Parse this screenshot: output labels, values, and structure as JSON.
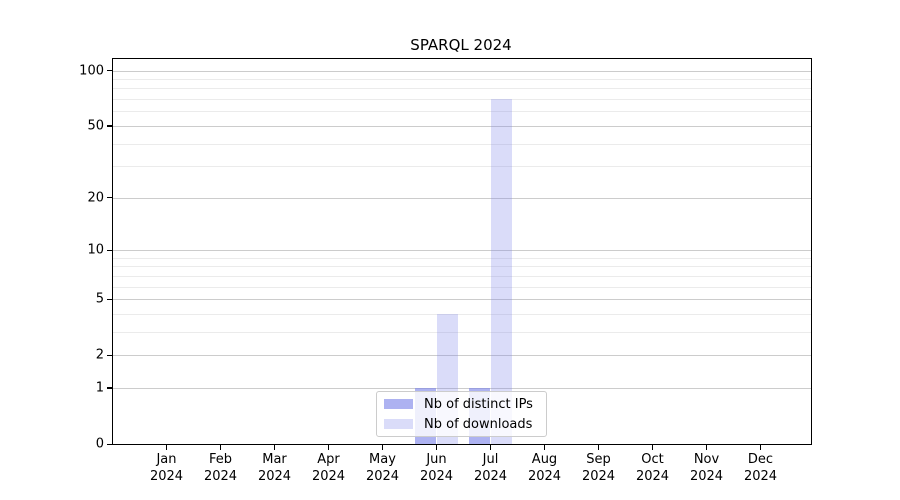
{
  "title": "SPARQL 2024",
  "colors": {
    "spine": "#000000",
    "grid_major": "#cccccc",
    "grid_minor": "#ebebeb",
    "series_distinct_ips": "rgba(122,130,233,0.62)",
    "series_downloads": "rgba(122,130,233,0.28)",
    "legend_background": "rgba(255,255,255,0.8)",
    "legend_border": "#cccccc"
  },
  "chart_data": {
    "type": "bar",
    "title": "SPARQL 2024",
    "categories": [
      "Jan 2024",
      "Feb 2024",
      "Mar 2024",
      "Apr 2024",
      "May 2024",
      "Jun 2024",
      "Jul 2024",
      "Aug 2024",
      "Sep 2024",
      "Oct 2024",
      "Nov 2024",
      "Dec 2024"
    ],
    "series": [
      {
        "name": "Nb of distinct IPs",
        "color": "rgba(122,130,233,0.62)",
        "values": [
          0,
          0,
          0,
          0,
          0,
          1,
          1,
          0,
          0,
          0,
          0,
          0
        ]
      },
      {
        "name": "Nb of downloads",
        "color": "rgba(122,130,233,0.28)",
        "values": [
          0,
          0,
          0,
          0,
          0,
          4,
          70,
          0,
          0,
          0,
          0,
          0
        ]
      }
    ],
    "xlabel": "",
    "ylabel": "",
    "yscale": "log1p",
    "ylim": [
      0,
      117
    ],
    "yticks_major": [
      0,
      1,
      2,
      5,
      10,
      20,
      50,
      100
    ],
    "yticks_minor": [
      3,
      4,
      6,
      7,
      8,
      9,
      30,
      40,
      60,
      70,
      80,
      90
    ],
    "grid": "horizontal major+minor",
    "legend_position": "lower center (inside axes)"
  }
}
